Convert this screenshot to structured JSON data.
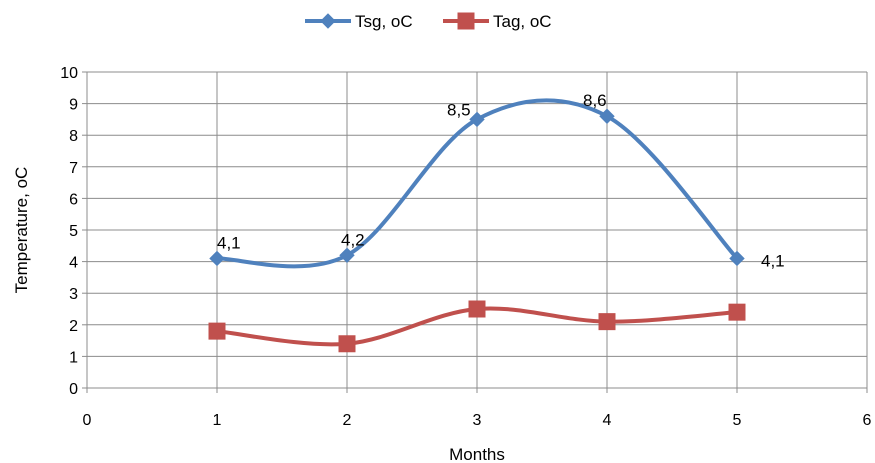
{
  "chart_data": {
    "type": "line",
    "title": "",
    "xlabel": "Months",
    "ylabel": "Temperature, oC",
    "xlim": [
      0,
      6
    ],
    "ylim": [
      0,
      10
    ],
    "x_ticks": [
      0,
      1,
      2,
      3,
      4,
      5,
      6
    ],
    "y_ticks": [
      0,
      1,
      2,
      3,
      4,
      5,
      6,
      7,
      8,
      9,
      10
    ],
    "grid": true,
    "smooth": true,
    "legend_position": "top",
    "series": [
      {
        "name": "Tsg, oC",
        "color": "#4f81bd",
        "marker": "diamond",
        "x": [
          1,
          2,
          3,
          4,
          5
        ],
        "y": [
          4.1,
          4.2,
          8.5,
          8.6,
          4.1
        ],
        "data_labels": [
          "4,1",
          "4,2",
          "8,5",
          "8,6",
          "4,1"
        ]
      },
      {
        "name": "Tag, oC",
        "color": "#c0504d",
        "marker": "square",
        "x": [
          1,
          2,
          3,
          4,
          5
        ],
        "y": [
          1.8,
          1.4,
          2.5,
          2.1,
          2.4
        ]
      }
    ]
  }
}
